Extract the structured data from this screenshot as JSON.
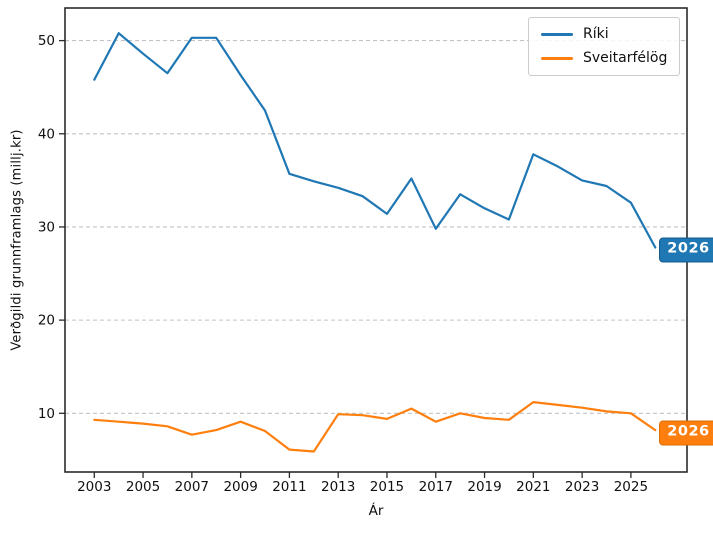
{
  "chart_data": {
    "type": "line",
    "title": "",
    "xlabel": "Ár",
    "ylabel": "Verðgildi grunnframlags (millj.kr)",
    "x": [
      2003,
      2004,
      2005,
      2006,
      2007,
      2008,
      2009,
      2010,
      2011,
      2012,
      2013,
      2014,
      2015,
      2016,
      2017,
      2018,
      2019,
      2020,
      2021,
      2022,
      2023,
      2024,
      2025,
      2026
    ],
    "series": [
      {
        "name": "Ríki",
        "color": "#1f77b4",
        "values": [
          45.8,
          50.8,
          48.6,
          46.5,
          50.3,
          50.3,
          46.3,
          42.5,
          35.7,
          34.9,
          34.2,
          33.3,
          31.4,
          35.2,
          29.8,
          33.5,
          32.0,
          30.8,
          37.8,
          36.5,
          35.0,
          34.4,
          32.6,
          27.8
        ]
      },
      {
        "name": "Sveitarfélög",
        "color": "#ff7f0e",
        "values": [
          9.3,
          9.1,
          8.9,
          8.6,
          7.7,
          8.2,
          9.1,
          8.1,
          6.1,
          5.9,
          9.9,
          9.8,
          9.4,
          10.5,
          9.1,
          10.0,
          9.5,
          9.3,
          11.2,
          10.9,
          10.6,
          10.2,
          10.0,
          8.2
        ]
      }
    ],
    "xticks": [
      "2003",
      "2005",
      "2007",
      "2009",
      "2011",
      "2013",
      "2015",
      "2017",
      "2019",
      "2021",
      "2023",
      "2025"
    ],
    "xtick_years": [
      2003,
      2005,
      2007,
      2009,
      2011,
      2013,
      2015,
      2017,
      2019,
      2021,
      2023,
      2025
    ],
    "yticks": [
      10,
      20,
      30,
      40,
      50
    ],
    "xlim": [
      2001.8,
      2027.3
    ],
    "ylim": [
      3.7,
      53.5
    ],
    "grid": "horizontal-dashed",
    "legend_position": "top-right",
    "end_labels": [
      {
        "text": "2026",
        "series": "Ríki",
        "bg": "#1f77b4",
        "border": "#155a8c"
      },
      {
        "text": "2026",
        "series": "Sveitarfélög",
        "bg": "#ff7f0e",
        "border": "#d96d07"
      }
    ]
  },
  "colors": {
    "background": "#ffffff",
    "grid": "#c2c2c2",
    "spine": "#2b2b2b",
    "tick_text": "#111111"
  }
}
